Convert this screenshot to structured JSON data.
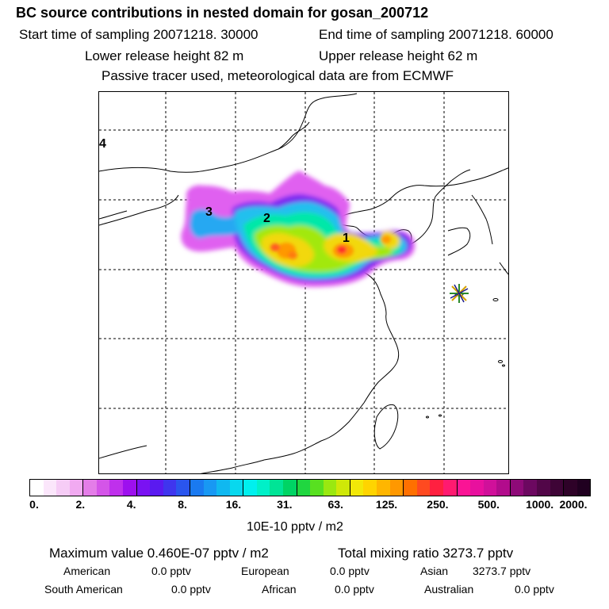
{
  "header": {
    "title": "BC  source contributions in nested domain for gosan_200712",
    "start_time": "Start time of sampling 20071218. 30000",
    "end_time": "End time of sampling 20071218. 60000",
    "lower_release": "Lower release height   82 m",
    "upper_release": "Upper release height   62 m",
    "tracer_note": "Passive tracer used, meteorological data are from ECMWF"
  },
  "map": {
    "region_labels": [
      "1",
      "2",
      "3",
      "4"
    ],
    "receptor_marker": "star-marker"
  },
  "legend": {
    "tick_labels": [
      "0.",
      "2.",
      "4.",
      "8.",
      "16.",
      "31.",
      "63.",
      "125.",
      "250.",
      "500.",
      "1000.",
      "2000."
    ],
    "unit": "10E-10 pptv / m2",
    "colors": [
      "#ffffff",
      "#fbe6fb",
      "#f6ccf6",
      "#f1aaf1",
      "#e47de8",
      "#d455e8",
      "#bf30ec",
      "#9d10ee",
      "#7a12f2",
      "#5a1af0",
      "#3f35ee",
      "#2a55ee",
      "#1a7af0",
      "#1898f3",
      "#10b8f0",
      "#08d8ee",
      "#00f0ee",
      "#00f0c8",
      "#00e496",
      "#00d464",
      "#20d640",
      "#58e020",
      "#9ae810",
      "#cfe808",
      "#f2e808",
      "#ffd400",
      "#ffb600",
      "#ff9800",
      "#ff7000",
      "#ff4a20",
      "#ff2040",
      "#ff1a70",
      "#fa1495",
      "#e8109e",
      "#d0109a",
      "#b20c8c",
      "#8e0a78",
      "#6c0860",
      "#520648",
      "#3e0436",
      "#2e0228",
      "#200020"
    ]
  },
  "stats": {
    "max_value": "Maximum value  0.460E-07 pptv / m2",
    "total_mixing": "Total mixing ratio     3273.7 pptv"
  },
  "sources": {
    "american_label": "American",
    "american_value": "0.0 pptv",
    "european_label": "European",
    "european_value": "0.0 pptv",
    "asian_label": "Asian",
    "asian_value": "3273.7 pptv",
    "south_american_label": "South American",
    "south_american_value": "0.0 pptv",
    "african_label": "African",
    "african_value": "0.0 pptv",
    "australian_label": "Australian",
    "australian_value": "0.0 pptv"
  }
}
